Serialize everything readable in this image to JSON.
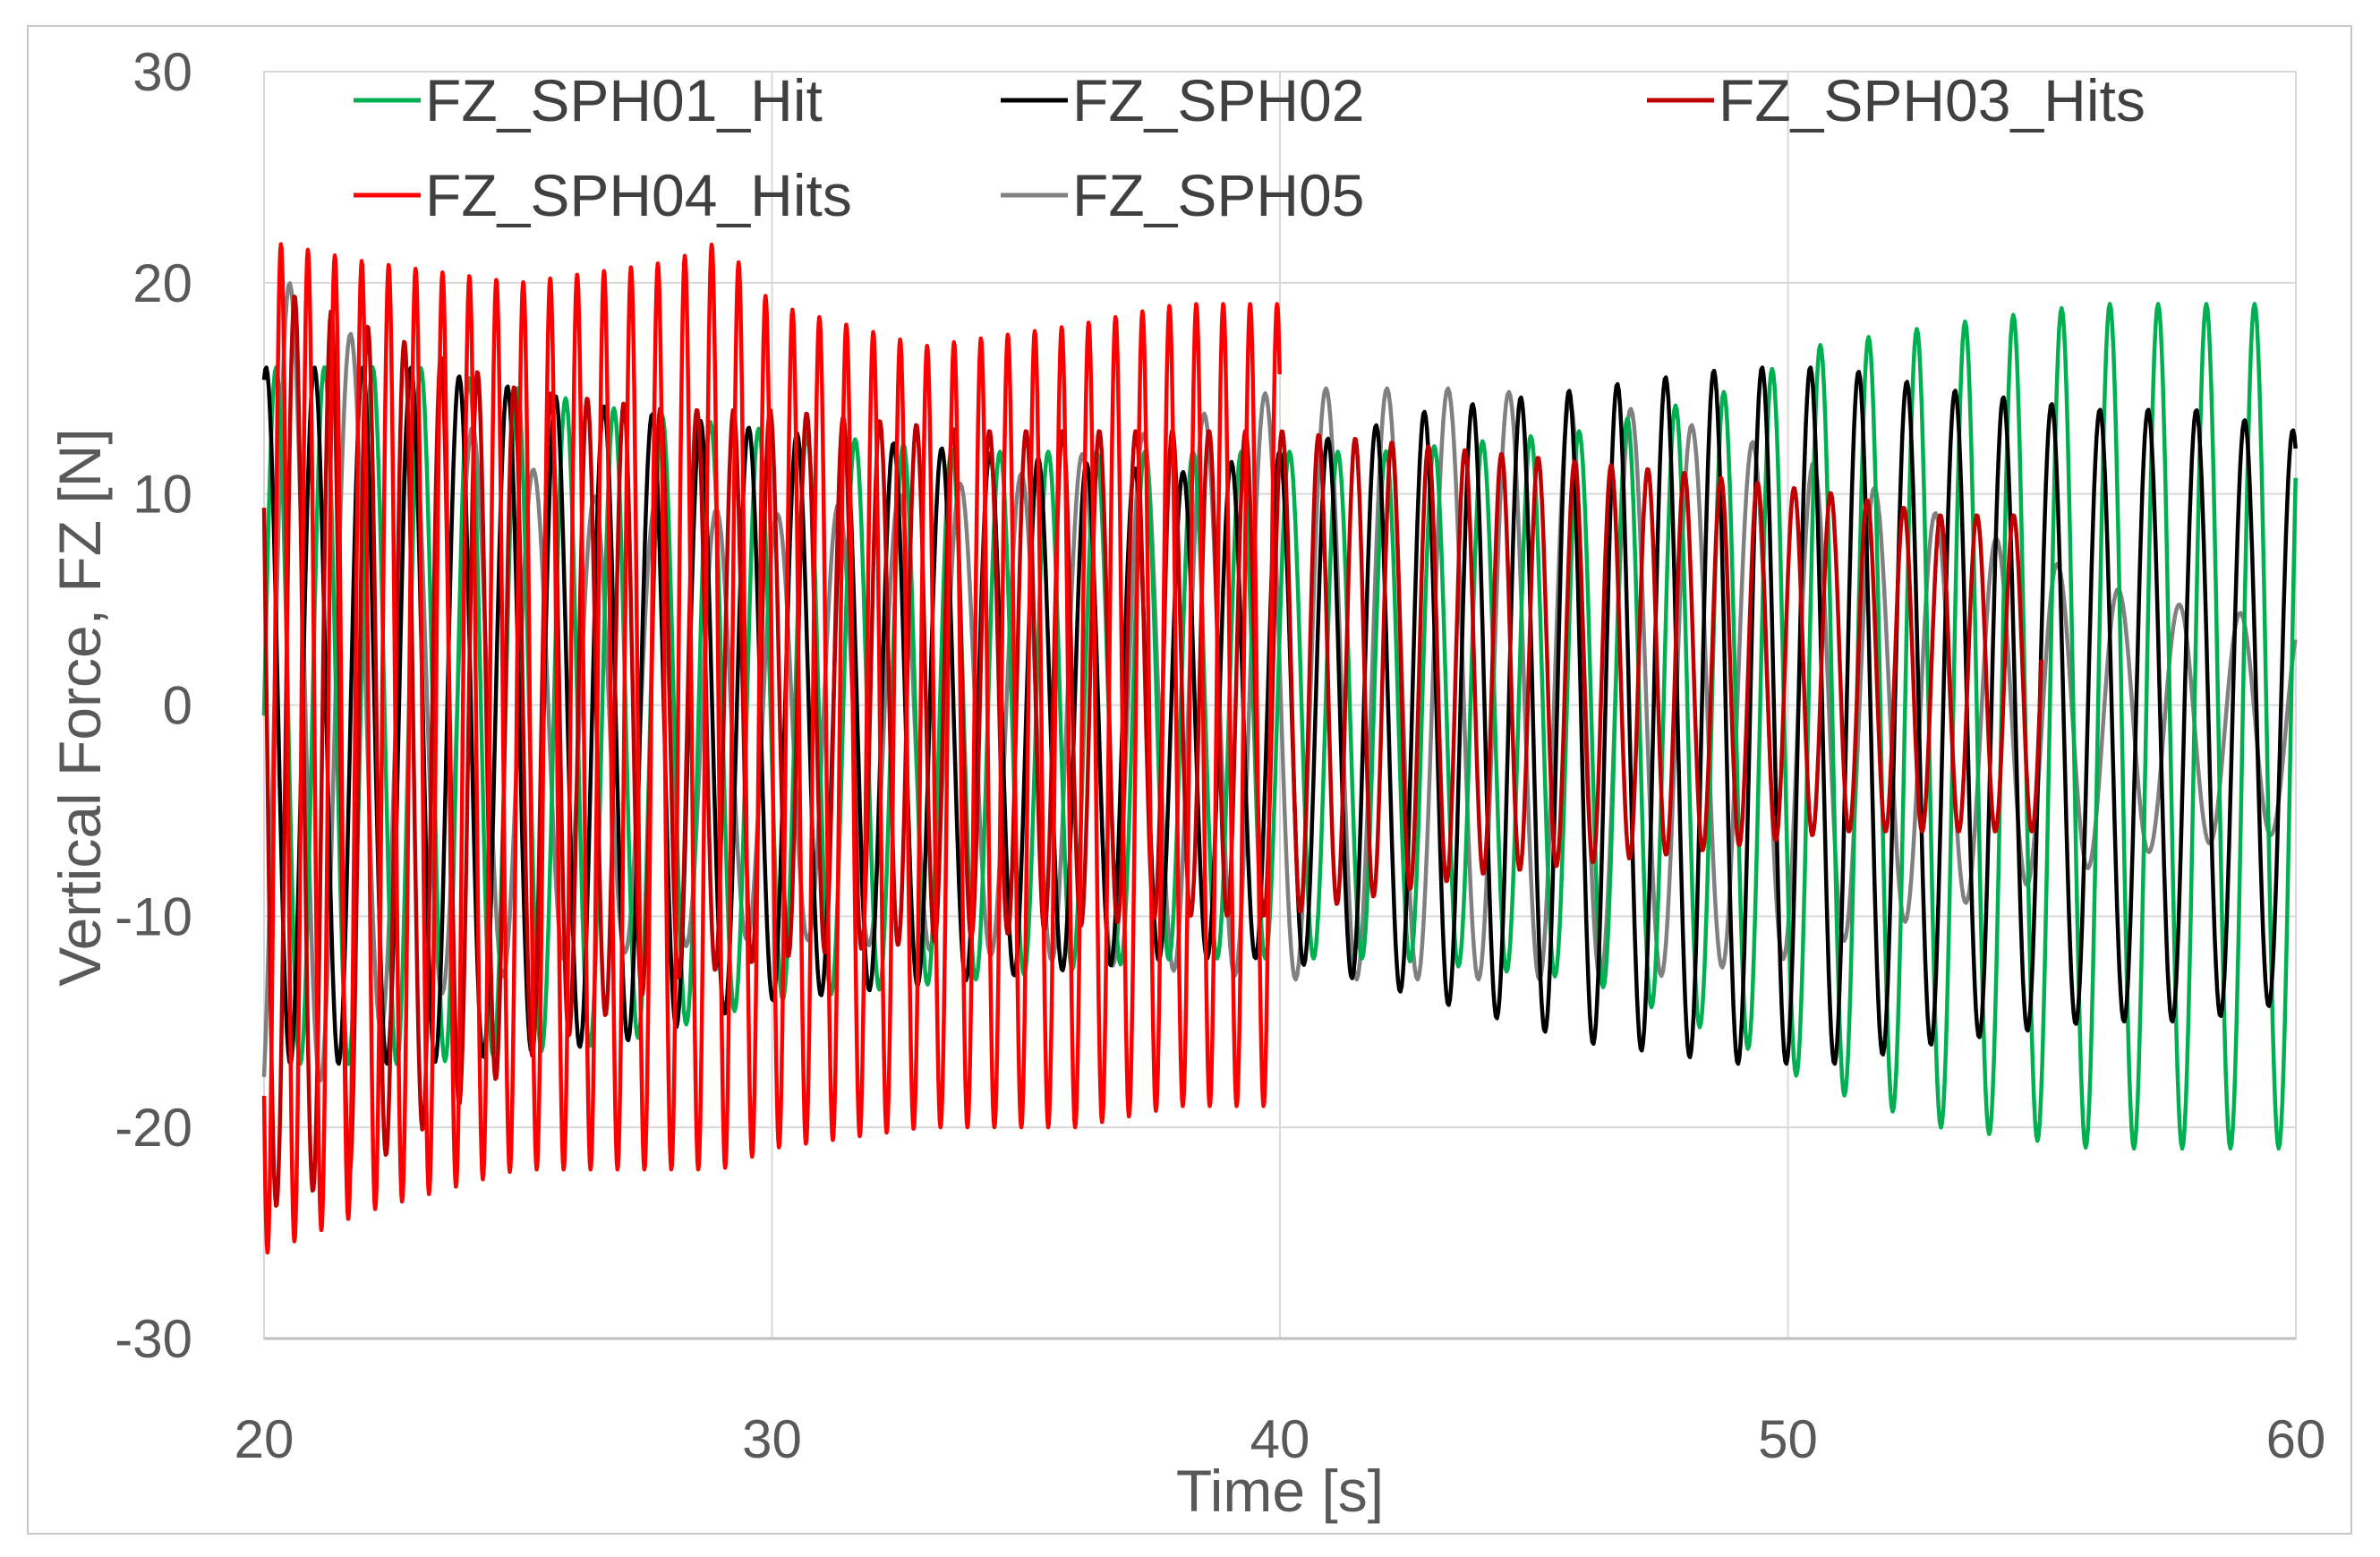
{
  "chart_data": {
    "type": "line",
    "title": "",
    "xlabel": "Time [s]",
    "ylabel": "Vertical Force, FZ [N]",
    "xlim": [
      20,
      60
    ],
    "ylim": [
      -30,
      30
    ],
    "x_ticks": [
      "20",
      "30",
      "40",
      "50",
      "60"
    ],
    "y_ticks": [
      "30",
      "20",
      "10",
      "0",
      "-10",
      "-20",
      "-30"
    ],
    "grid": true,
    "legend_position": "top",
    "series": [
      {
        "name": "FZ_SPH01_Hit",
        "color": "#00b050",
        "period_s": 0.95,
        "t": [
          20,
          23,
          27,
          30,
          34,
          38,
          42,
          46,
          49,
          50.5,
          53,
          56,
          58,
          60
        ],
        "max": [
          16,
          16,
          14,
          13,
          12,
          12,
          12,
          13,
          15,
          17,
          18,
          19,
          19,
          19
        ],
        "min": [
          -17,
          -17,
          -16,
          -14,
          -13,
          -12,
          -12,
          -13,
          -16,
          -18,
          -20,
          -21,
          -21,
          -21
        ]
      },
      {
        "name": "FZ_SPH02",
        "color": "#000000",
        "period_s": 0.95,
        "t": [
          20,
          23,
          27,
          30,
          34,
          38,
          40,
          43,
          46,
          49,
          51,
          53,
          56,
          58,
          60
        ],
        "max": [
          16,
          16,
          14,
          13,
          12,
          11,
          12,
          14,
          15,
          16,
          16,
          15,
          14,
          14,
          13
        ],
        "min": [
          -17,
          -17,
          -16,
          -14,
          -13,
          -12,
          -12,
          -14,
          -16,
          -17,
          -17,
          -16,
          -15,
          -15,
          -14
        ]
      },
      {
        "name": "FZ_SPH03_Hits",
        "color": "#c00000",
        "period_s": 0.72,
        "t": [
          20,
          22,
          25,
          28,
          30,
          34,
          38,
          40,
          44,
          48,
          51,
          53,
          55
        ],
        "max": [
          20,
          18,
          15,
          14,
          14,
          13,
          13,
          13,
          12,
          11,
          10,
          9,
          9
        ],
        "min": [
          -24,
          -22,
          -17,
          -13,
          -12,
          -11,
          -10,
          -10,
          -8,
          -7,
          -6,
          -6,
          -6
        ]
      },
      {
        "name": "FZ_SPH04_Hits",
        "color": "#ff0000",
        "period_s": 0.53,
        "t": [
          20,
          22,
          25,
          28,
          29,
          30,
          33,
          36,
          38,
          40
        ],
        "max": [
          22,
          21,
          20,
          21,
          22,
          19,
          17,
          18,
          19,
          19
        ],
        "min": [
          -26,
          -24,
          -22,
          -22,
          -22,
          -21,
          -20,
          -20,
          -19,
          -19
        ]
      },
      {
        "name": "FZ_SPH05",
        "color": "#808080",
        "period_s": 1.2,
        "t": [
          20,
          21,
          23,
          26,
          30,
          35,
          40,
          44,
          47,
          50,
          54,
          57,
          60
        ],
        "max": [
          21,
          19,
          15,
          10,
          9,
          11,
          15,
          15,
          14,
          12,
          8,
          5,
          4
        ],
        "min": [
          -20,
          -18,
          -14,
          -12,
          -11,
          -12,
          -13,
          -13,
          -13,
          -12,
          -9,
          -7,
          -6
        ]
      }
    ]
  }
}
